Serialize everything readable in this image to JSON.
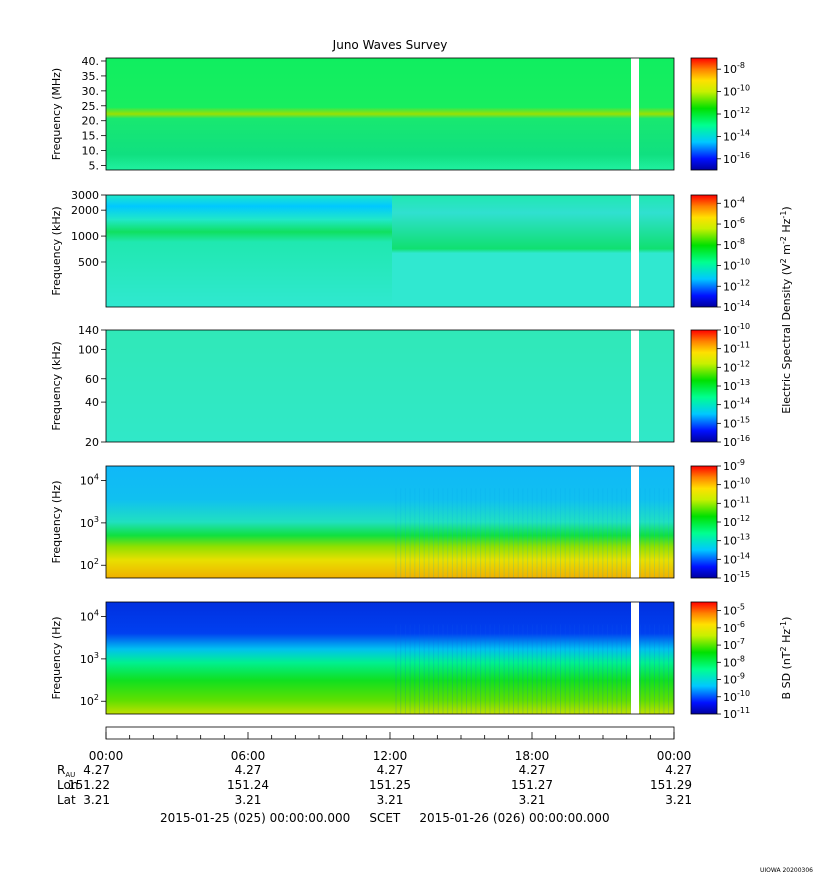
{
  "chart_data": {
    "type": "heatmap",
    "title": "Juno Waves Survey",
    "x_ticks": [
      "00:00",
      "06:00",
      "12:00",
      "18:00",
      "00:00"
    ],
    "data_gap_label": "",
    "panels": [
      {
        "id": "p1",
        "ylabel": "Frequency (MHz)",
        "yscale": "linear",
        "ylim": [
          3.5,
          41
        ],
        "yticks": [
          {
            "v": 5,
            "t": "5."
          },
          {
            "v": 10,
            "t": "10."
          },
          {
            "v": 15,
            "t": "15."
          },
          {
            "v": 20,
            "t": "20."
          },
          {
            "v": 25,
            "t": "25."
          },
          {
            "v": 30,
            "t": "30."
          },
          {
            "v": 35,
            "t": "35."
          },
          {
            "v": 40,
            "t": "40."
          }
        ],
        "colorbar": {
          "exponents": [
            -8,
            -10,
            -12,
            -14,
            -16
          ],
          "log_range": [
            -17,
            -7
          ],
          "show_title": false
        }
      },
      {
        "id": "p2",
        "ylabel": "Frequency (kHz)",
        "yscale": "log",
        "ylim": [
          150,
          3000
        ],
        "yticks": [
          {
            "v": 500,
            "t": "500"
          },
          {
            "v": 1000,
            "t": "1000"
          },
          {
            "v": 2000,
            "t": "2000"
          },
          {
            "v": 3000,
            "t": "3000"
          }
        ],
        "colorbar": {
          "exponents": [
            -4,
            -6,
            -8,
            -10,
            -12,
            -14
          ],
          "log_range": [
            -14,
            -3.2
          ],
          "show_title": false
        }
      },
      {
        "id": "p3",
        "ylabel": "Frequency (kHz)",
        "yscale": "log",
        "ylim": [
          20,
          140
        ],
        "yticks": [
          {
            "v": 20,
            "t": "20"
          },
          {
            "v": 40,
            "t": "40"
          },
          {
            "v": 60,
            "t": "60"
          },
          {
            "v": 100,
            "t": "100"
          },
          {
            "v": 140,
            "t": "140"
          }
        ],
        "colorbar": {
          "exponents": [
            -10,
            -11,
            -12,
            -13,
            -14,
            -15,
            -16
          ],
          "log_range": [
            -16,
            -10
          ],
          "show_title": true
        }
      },
      {
        "id": "p4",
        "ylabel": "Frequency (Hz)",
        "yscale": "log",
        "ylim": [
          50,
          22000
        ],
        "yticks": [
          {
            "v": 100,
            "t": "10",
            "e": "2"
          },
          {
            "v": 1000,
            "t": "10",
            "e": "3"
          },
          {
            "v": 10000,
            "t": "10",
            "e": "4"
          }
        ],
        "colorbar": {
          "exponents": [
            -9,
            -10,
            -11,
            -12,
            -13,
            -14,
            -15
          ],
          "log_range": [
            -15,
            -9
          ],
          "show_title": false
        }
      },
      {
        "id": "p5",
        "ylabel": "Frequency (Hz)",
        "yscale": "log",
        "ylim": [
          50,
          22000
        ],
        "yticks": [
          {
            "v": 100,
            "t": "10",
            "e": "2"
          },
          {
            "v": 1000,
            "t": "10",
            "e": "3"
          },
          {
            "v": 10000,
            "t": "10",
            "e": "4"
          }
        ],
        "colorbar": {
          "exponents": [
            -5,
            -6,
            -7,
            -8,
            -9,
            -10,
            -11
          ],
          "log_range": [
            -11,
            -4.5
          ],
          "show_title": false
        }
      }
    ],
    "colorbar_title_e": "Electric Spectral Density (V",
    "colorbar_title_e_sup1": "2",
    "colorbar_title_e_mid": " m",
    "colorbar_title_e_sup2": "-2",
    "colorbar_title_e_mid2": " Hz",
    "colorbar_title_e_sup3": "-1",
    "colorbar_title_e_end": ")",
    "colorbar_title_b": "B SD (nT",
    "colorbar_title_b_sup1": "2",
    "colorbar_title_b_mid": " Hz",
    "colorbar_title_b_sup2": "-1",
    "colorbar_title_b_end": ")",
    "ephemeris": {
      "labels": [
        "R",
        "Lon",
        "Lat"
      ],
      "r_sub": "AU",
      "rows": [
        [
          "4.27",
          "4.27",
          "4.27",
          "4.27",
          "4.27"
        ],
        [
          "151.22",
          "151.24",
          "151.25",
          "151.27",
          "151.29"
        ],
        [
          "3.21",
          "3.21",
          "3.21",
          "3.21",
          "3.21"
        ]
      ]
    }
  },
  "footer": {
    "start": "2015-01-25 (025) 00:00:00.000",
    "mid": "SCET",
    "end": "2015-01-26 (026) 00:00:00.000"
  },
  "stamp": "UIOWA 20200306"
}
